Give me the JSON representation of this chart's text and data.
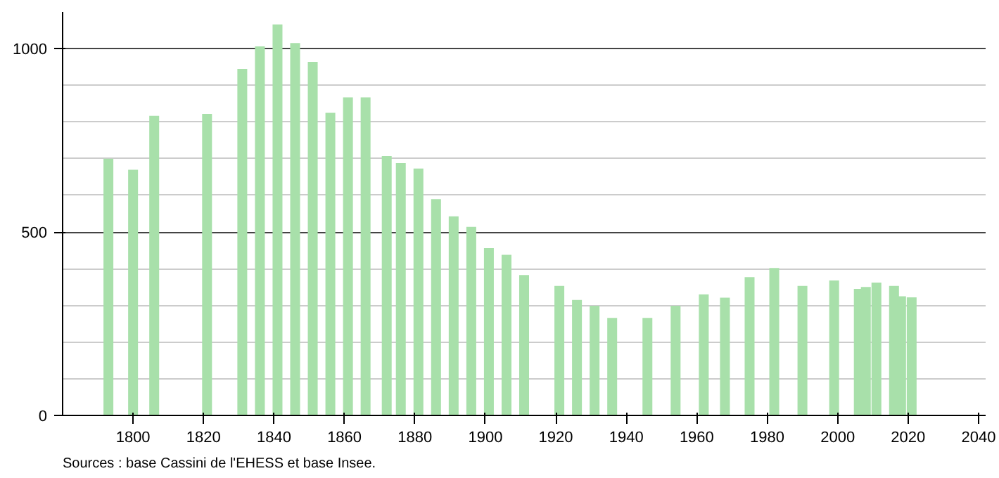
{
  "chart_data": {
    "type": "bar",
    "color": "#a8e0aa",
    "x": [
      1793,
      1800,
      1806,
      1821,
      1831,
      1836,
      1841,
      1846,
      1851,
      1856,
      1861,
      1866,
      1872,
      1876,
      1881,
      1886,
      1891,
      1896,
      1901,
      1906,
      1911,
      1921,
      1926,
      1931,
      1936,
      1946,
      1954,
      1962,
      1968,
      1975,
      1982,
      1990,
      1999,
      2006,
      2008,
      2011,
      2016,
      2018,
      2021
    ],
    "values": [
      700,
      670,
      817,
      822,
      945,
      1006,
      1066,
      1015,
      964,
      825,
      867,
      867,
      707,
      688,
      673,
      590,
      543,
      514,
      456,
      438,
      383,
      353,
      315,
      299,
      266,
      266,
      299,
      330,
      321,
      377,
      402,
      353,
      368,
      345,
      350,
      362,
      353,
      325,
      322
    ],
    "xlim": [
      1780,
      2042
    ],
    "ylim": [
      0,
      1100
    ],
    "xticks": [
      1800,
      1820,
      1840,
      1860,
      1880,
      1900,
      1920,
      1940,
      1960,
      1980,
      2000,
      2020,
      2040
    ],
    "yticks": [
      0,
      500,
      1000
    ],
    "grid": "y",
    "annotations": [
      "Sources : base Cassini de l'EHESS et base Insee."
    ]
  }
}
